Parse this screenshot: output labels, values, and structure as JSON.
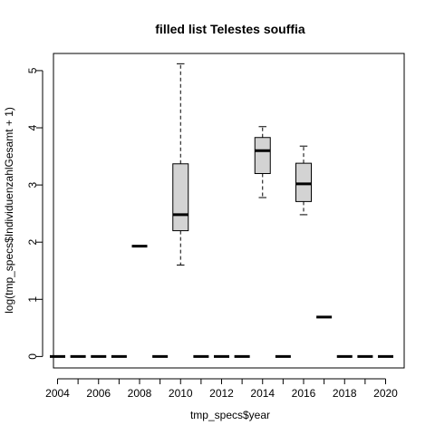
{
  "chart_data": {
    "type": "boxplot",
    "title": "filled list Telestes souffia",
    "xlabel": "tmp_specs$year",
    "ylabel": "log(tmp_specs$IndividuenzahlGesamt + 1)",
    "ylim": [
      -0.2,
      5.3
    ],
    "yticks": [
      0,
      1,
      2,
      3,
      4,
      5
    ],
    "xtick_labels": [
      "2004",
      "2006",
      "2008",
      "2010",
      "2012",
      "2014",
      "2016",
      "2018",
      "2020"
    ],
    "box_fill": "#d3d3d3",
    "categories": [
      "2004",
      "2005",
      "2006",
      "2007",
      "2008",
      "2009",
      "2010",
      "2011",
      "2012",
      "2013",
      "2014",
      "2015",
      "2016",
      "2017",
      "2018",
      "2019",
      "2020"
    ],
    "boxes": [
      {
        "x": "2004",
        "min": 0,
        "q1": 0,
        "median": 0,
        "q3": 0,
        "max": 0
      },
      {
        "x": "2005",
        "min": 0,
        "q1": 0,
        "median": 0,
        "q3": 0,
        "max": 0
      },
      {
        "x": "2006",
        "min": 0,
        "q1": 0,
        "median": 0,
        "q3": 0,
        "max": 0
      },
      {
        "x": "2007",
        "min": 0,
        "q1": 0,
        "median": 0,
        "q3": 0,
        "max": 0
      },
      {
        "x": "2008",
        "min": 1.93,
        "q1": 1.93,
        "median": 1.93,
        "q3": 1.93,
        "max": 1.93
      },
      {
        "x": "2009",
        "min": 0,
        "q1": 0,
        "median": 0,
        "q3": 0,
        "max": 0
      },
      {
        "x": "2010",
        "min": 1.6,
        "q1": 2.2,
        "median": 2.48,
        "q3": 3.37,
        "max": 5.12
      },
      {
        "x": "2011",
        "min": 0,
        "q1": 0,
        "median": 0,
        "q3": 0,
        "max": 0
      },
      {
        "x": "2012",
        "min": 0,
        "q1": 0,
        "median": 0,
        "q3": 0,
        "max": 0
      },
      {
        "x": "2013",
        "min": 0,
        "q1": 0,
        "median": 0,
        "q3": 0,
        "max": 0
      },
      {
        "x": "2014",
        "min": 2.78,
        "q1": 3.2,
        "median": 3.6,
        "q3": 3.83,
        "max": 4.02
      },
      {
        "x": "2015",
        "min": 0,
        "q1": 0,
        "median": 0,
        "q3": 0,
        "max": 0
      },
      {
        "x": "2016",
        "min": 2.48,
        "q1": 2.71,
        "median": 3.02,
        "q3": 3.38,
        "max": 3.68
      },
      {
        "x": "2017",
        "min": 0.69,
        "q1": 0.69,
        "median": 0.69,
        "q3": 0.69,
        "max": 0.69
      },
      {
        "x": "2018",
        "min": 0,
        "q1": 0,
        "median": 0,
        "q3": 0,
        "max": 0
      },
      {
        "x": "2019",
        "min": 0,
        "q1": 0,
        "median": 0,
        "q3": 0,
        "max": 0
      },
      {
        "x": "2020",
        "min": 0,
        "q1": 0,
        "median": 0,
        "q3": 0,
        "max": 0
      }
    ]
  }
}
